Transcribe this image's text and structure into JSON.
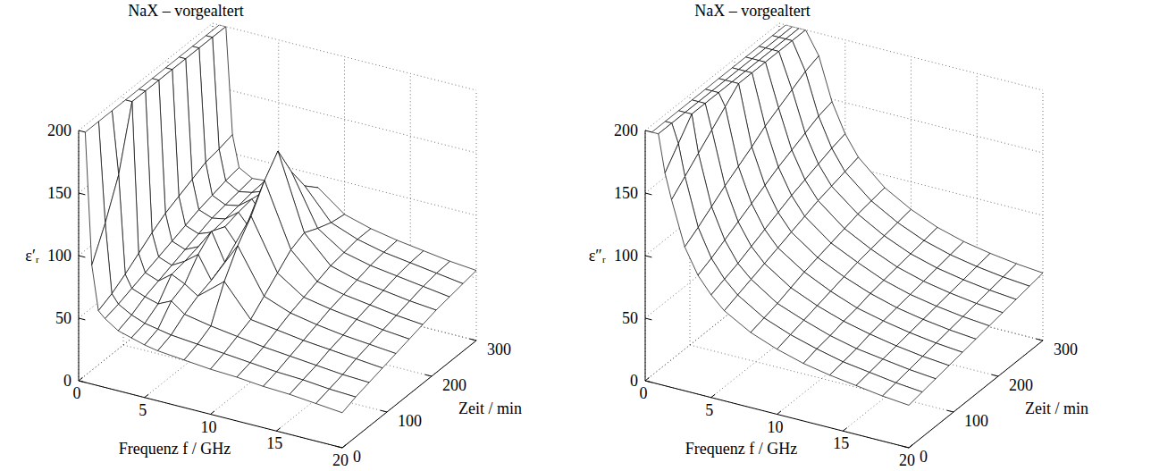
{
  "chart_data": [
    {
      "type": "surface",
      "title": "NaX – vorgealtert",
      "xlabel": "Frequenz f / GHz",
      "ylabel": "Zeit / min",
      "zlabel": "ε′ᵣ",
      "x": [
        0.5,
        1,
        1.5,
        2,
        3,
        4,
        5,
        6,
        8,
        10,
        12,
        14,
        16,
        18,
        20
      ],
      "y": [
        0,
        30,
        60,
        90,
        120,
        150,
        180,
        210,
        240,
        270,
        300
      ],
      "z": [
        [
          200,
          95,
          60,
          55,
          48,
          45,
          42,
          40,
          38,
          36,
          35,
          33,
          32,
          30,
          28
        ],
        [
          200,
          120,
          65,
          58,
          52,
          48,
          46,
          44,
          42,
          40,
          38,
          36,
          35,
          33,
          32
        ],
        [
          200,
          150,
          72,
          62,
          58,
          55,
          60,
          52,
          48,
          45,
          42,
          40,
          38,
          36,
          35
        ],
        [
          200,
          200,
          80,
          66,
          62,
          70,
          65,
          58,
          75,
          50,
          47,
          44,
          42,
          40,
          38
        ],
        [
          200,
          200,
          88,
          70,
          66,
          72,
          80,
          62,
          95,
          60,
          52,
          48,
          45,
          43,
          41
        ],
        [
          200,
          200,
          95,
          74,
          70,
          75,
          90,
          68,
          110,
          70,
          56,
          52,
          49,
          46,
          44
        ],
        [
          200,
          200,
          100,
          78,
          74,
          78,
          85,
          72,
          130,
          80,
          60,
          55,
          52,
          49,
          47
        ],
        [
          200,
          200,
          105,
          82,
          78,
          80,
          88,
          76,
          145,
          85,
          64,
          58,
          55,
          52,
          50
        ],
        [
          200,
          200,
          110,
          85,
          80,
          82,
          90,
          78,
          120,
          80,
          66,
          61,
          58,
          55,
          52
        ],
        [
          200,
          200,
          112,
          88,
          82,
          84,
          88,
          80,
          100,
          76,
          68,
          63,
          60,
          57,
          54
        ],
        [
          200,
          200,
          115,
          90,
          84,
          85,
          86,
          80,
          90,
          74,
          68,
          64,
          61,
          58,
          56
        ]
      ],
      "xlim": [
        0,
        20
      ],
      "ylim": [
        0,
        300
      ],
      "zlim": [
        0,
        200
      ],
      "xticks": [
        0,
        5,
        10,
        15,
        20
      ],
      "yticks": [
        0,
        100,
        200,
        300
      ],
      "zticks": [
        0,
        50,
        100,
        150,
        200
      ],
      "grid": true,
      "color": "#000000"
    },
    {
      "type": "surface",
      "title": "NaX – vorgealtert",
      "xlabel": "Frequenz f / GHz",
      "ylabel": "Zeit / min",
      "zlabel": "ε″ᵣ",
      "x": [
        0.5,
        1,
        1.5,
        2,
        3,
        4,
        5,
        6,
        8,
        10,
        12,
        14,
        16,
        18,
        20
      ],
      "y": [
        0,
        30,
        60,
        90,
        120,
        150,
        180,
        210,
        240,
        270,
        300
      ],
      "z": [
        [
          200,
          200,
          170,
          150,
          115,
          95,
          82,
          72,
          60,
          52,
          46,
          42,
          39,
          36,
          34
        ],
        [
          200,
          200,
          185,
          160,
          122,
          100,
          86,
          76,
          63,
          55,
          49,
          44,
          41,
          38,
          36
        ],
        [
          200,
          200,
          200,
          170,
          130,
          106,
          90,
          80,
          66,
          58,
          51,
          46,
          43,
          40,
          38
        ],
        [
          200,
          200,
          200,
          180,
          138,
          112,
          95,
          84,
          70,
          61,
          54,
          49,
          45,
          42,
          40
        ],
        [
          200,
          200,
          200,
          190,
          145,
          118,
          100,
          88,
          74,
          64,
          56,
          51,
          47,
          44,
          42
        ],
        [
          200,
          200,
          200,
          200,
          152,
          124,
          105,
          92,
          77,
          67,
          59,
          53,
          49,
          46,
          44
        ],
        [
          200,
          200,
          200,
          200,
          160,
          130,
          110,
          96,
          80,
          70,
          61,
          55,
          51,
          48,
          46
        ],
        [
          200,
          200,
          200,
          200,
          166,
          135,
          114,
          100,
          83,
          72,
          63,
          57,
          53,
          50,
          48
        ],
        [
          200,
          200,
          200,
          200,
          172,
          140,
          118,
          103,
          86,
          74,
          65,
          59,
          55,
          52,
          50
        ],
        [
          200,
          200,
          200,
          200,
          178,
          145,
          122,
          106,
          88,
          76,
          67,
          61,
          57,
          54,
          52
        ],
        [
          200,
          200,
          200,
          200,
          182,
          148,
          125,
          109,
          90,
          78,
          69,
          63,
          59,
          56,
          54
        ]
      ],
      "xlim": [
        0,
        20
      ],
      "ylim": [
        0,
        300
      ],
      "zlim": [
        0,
        200
      ],
      "xticks": [
        0,
        5,
        10,
        15,
        20
      ],
      "yticks": [
        0,
        100,
        200,
        300
      ],
      "zticks": [
        0,
        50,
        100,
        150,
        200
      ],
      "grid": true,
      "color": "#000000"
    }
  ]
}
